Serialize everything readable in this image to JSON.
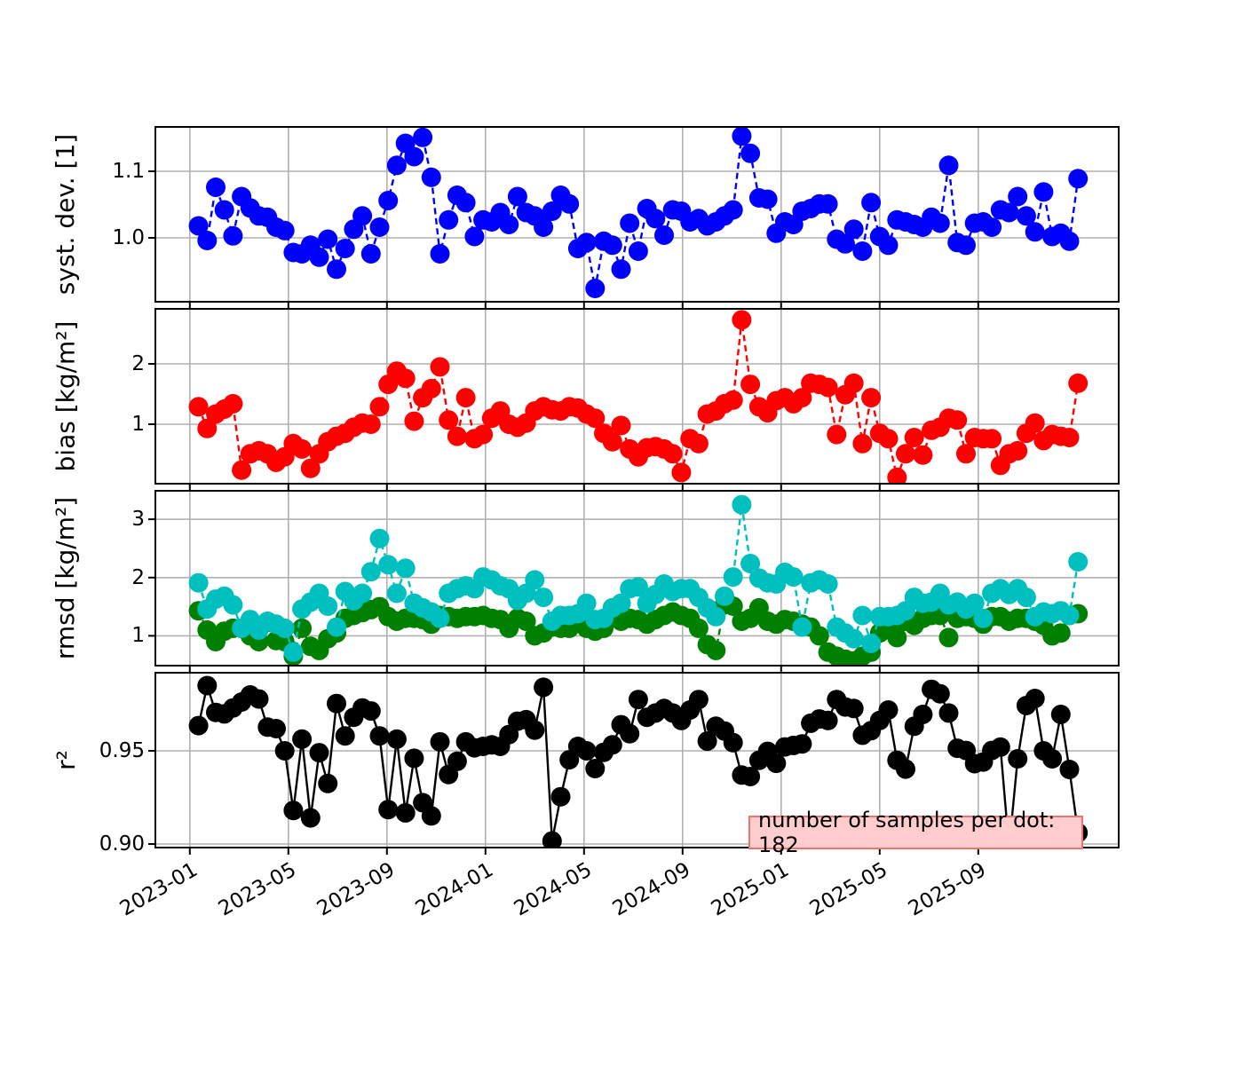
{
  "chart_data": {
    "type": "line",
    "description": "4 stacked validation time-series panels sharing one date axis",
    "x_axis": {
      "tick_labels": [
        "2023-01",
        "2023-05",
        "2023-09",
        "2024-01",
        "2024-05",
        "2024-09",
        "2025-01",
        "2025-05",
        "2025-09"
      ],
      "tick_months": [
        0,
        4,
        8,
        12,
        16,
        20,
        24,
        28,
        32
      ],
      "xlim_months": [
        -1.4,
        37.7
      ],
      "month_zero_label": "2023-01",
      "points_start_month": 0.35,
      "points_step_month": 0.35
    },
    "annotation": {
      "text": "number of samples per dot: 182"
    },
    "panels": [
      {
        "id": "systdev",
        "ylabel": "syst. dev. [1]",
        "ylim": [
          0.904,
          1.1667
        ],
        "yticks": [
          {
            "v": 1.0,
            "label": "1.0"
          },
          {
            "v": 1.1,
            "label": "1.1"
          }
        ],
        "series": [
          {
            "name": "syst-dev",
            "color": "#0000ff",
            "line_style": "dashed",
            "values": [
              1.018,
              0.996,
              1.076,
              1.042,
              1.003,
              1.062,
              1.045,
              1.033,
              1.031,
              1.016,
              1.011,
              0.978,
              0.976,
              0.989,
              0.971,
              0.998,
              0.953,
              0.984,
              1.013,
              1.033,
              0.976,
              1.016,
              1.056,
              1.109,
              1.142,
              1.122,
              1.151,
              1.091,
              0.976,
              1.027,
              1.064,
              1.053,
              1.002,
              1.027,
              1.024,
              1.038,
              1.02,
              1.062,
              1.038,
              1.033,
              1.016,
              1.04,
              1.064,
              1.051,
              0.984,
              0.993,
              0.924,
              0.995,
              0.989,
              0.953,
              1.022,
              0.98,
              1.044,
              1.029,
              1.004,
              1.042,
              1.04,
              1.024,
              1.029,
              1.018,
              1.024,
              1.033,
              1.042,
              1.153,
              1.127,
              1.06,
              1.058,
              1.007,
              1.024,
              1.02,
              1.04,
              1.044,
              1.051,
              1.051,
              0.998,
              0.991,
              1.013,
              0.98,
              1.053,
              1.002,
              0.989,
              1.027,
              1.024,
              1.02,
              1.016,
              1.031,
              1.022,
              1.109,
              0.993,
              0.989,
              1.022,
              1.024,
              1.016,
              1.042,
              1.038,
              1.062,
              1.033,
              1.009,
              1.069,
              1.002,
              1.007,
              0.995,
              1.089
            ]
          }
        ]
      },
      {
        "id": "bias",
        "ylabel": "bias [kg/m²]",
        "ylim": [
          0.015,
          2.912
        ],
        "yticks": [
          {
            "v": 1,
            "label": "1"
          },
          {
            "v": 2,
            "label": "2"
          }
        ],
        "series": [
          {
            "name": "bias",
            "color": "#ff0000",
            "line_style": "dashed",
            "values": [
              1.29,
              0.93,
              1.17,
              1.25,
              1.34,
              0.24,
              0.51,
              0.56,
              0.51,
              0.37,
              0.46,
              0.68,
              0.59,
              0.27,
              0.51,
              0.71,
              0.8,
              0.85,
              0.95,
              1.02,
              1.0,
              1.29,
              1.66,
              1.88,
              1.76,
              1.05,
              1.44,
              1.59,
              1.95,
              1.07,
              0.8,
              1.44,
              0.76,
              0.83,
              1.1,
              1.22,
              1.0,
              0.95,
              1.02,
              1.22,
              1.29,
              1.24,
              1.22,
              1.29,
              1.27,
              1.17,
              1.1,
              0.85,
              0.71,
              0.98,
              0.59,
              0.46,
              0.61,
              0.63,
              0.59,
              0.51,
              0.2,
              0.76,
              0.68,
              1.17,
              1.22,
              1.34,
              1.4,
              2.73,
              1.66,
              1.29,
              1.19,
              1.39,
              1.44,
              1.34,
              1.44,
              1.68,
              1.66,
              1.61,
              0.83,
              1.49,
              1.68,
              0.68,
              1.44,
              0.85,
              0.76,
              0.12,
              0.51,
              0.78,
              0.49,
              0.9,
              0.95,
              1.1,
              1.07,
              0.51,
              0.78,
              0.76,
              0.76,
              0.32,
              0.51,
              0.56,
              0.85,
              1.02,
              0.73,
              0.83,
              0.8,
              0.78,
              1.68
            ]
          }
        ]
      },
      {
        "id": "rmsd",
        "ylabel": "rmsd [kg/m²]",
        "ylim": [
          0.489,
          3.489
        ],
        "yticks": [
          {
            "v": 1,
            "label": "1"
          },
          {
            "v": 2,
            "label": "2"
          },
          {
            "v": 3,
            "label": "3"
          }
        ],
        "series": [
          {
            "name": "rmsd-green",
            "color": "#008000",
            "line_style": "dashed",
            "values": [
              1.43,
              1.1,
              0.9,
              1.08,
              1.13,
              1.13,
              1.0,
              0.9,
              1.23,
              0.92,
              0.9,
              0.65,
              1.13,
              0.82,
              0.75,
              0.95,
              1.05,
              1.3,
              1.35,
              1.4,
              1.45,
              1.5,
              1.33,
              1.25,
              1.3,
              1.3,
              1.28,
              1.2,
              1.35,
              1.33,
              1.3,
              1.33,
              1.33,
              1.35,
              1.3,
              1.28,
              1.13,
              1.3,
              1.25,
              1.0,
              1.05,
              1.15,
              1.13,
              1.13,
              1.25,
              1.13,
              1.08,
              1.13,
              1.48,
              1.25,
              1.3,
              1.28,
              1.2,
              1.28,
              1.35,
              1.41,
              1.35,
              1.3,
              1.13,
              0.85,
              0.75,
              1.53,
              1.51,
              1.25,
              1.3,
              1.48,
              1.25,
              1.2,
              1.28,
              1.25,
              1.2,
              1.15,
              1.0,
              0.72,
              0.65,
              0.6,
              0.57,
              0.65,
              0.72,
              1.05,
              1.15,
              0.97,
              1.25,
              1.18,
              1.3,
              1.35,
              1.35,
              0.97,
              1.3,
              1.33,
              1.3,
              1.2,
              1.33,
              1.33,
              1.25,
              1.3,
              1.3,
              1.25,
              1.18,
              1.0,
              1.05,
              1.35,
              1.38
            ]
          },
          {
            "name": "rmsd-cyan",
            "color": "#00bfbf",
            "line_style": "dashed",
            "values": [
              1.91,
              1.46,
              1.63,
              1.68,
              1.53,
              1.13,
              1.28,
              1.1,
              1.25,
              1.2,
              1.13,
              0.72,
              1.46,
              1.58,
              1.73,
              1.51,
              1.15,
              1.76,
              1.6,
              1.73,
              2.1,
              2.67,
              2.22,
              1.73,
              2.16,
              1.56,
              1.48,
              1.41,
              1.3,
              1.73,
              1.81,
              1.86,
              1.81,
              2.01,
              1.96,
              1.86,
              1.81,
              1.61,
              1.73,
              1.96,
              1.66,
              1.25,
              1.35,
              1.35,
              1.38,
              1.56,
              1.28,
              1.3,
              1.48,
              1.56,
              1.81,
              1.84,
              1.56,
              1.71,
              1.89,
              1.76,
              1.81,
              1.81,
              1.66,
              1.48,
              1.33,
              1.68,
              2.01,
              3.25,
              2.24,
              1.99,
              1.91,
              1.89,
              2.09,
              2.01,
              1.15,
              1.91,
              1.96,
              1.89,
              1.15,
              1.05,
              0.95,
              1.35,
              0.87,
              1.33,
              1.33,
              1.35,
              1.43,
              1.66,
              1.56,
              1.58,
              1.73,
              1.53,
              1.58,
              1.46,
              1.56,
              1.3,
              1.73,
              1.81,
              1.71,
              1.81,
              1.66,
              1.33,
              1.41,
              1.38,
              1.43,
              1.35,
              2.27
            ]
          }
        ]
      },
      {
        "id": "r2",
        "ylabel": "r²",
        "ylim": [
          0.8981,
          0.9919
        ],
        "yticks": [
          {
            "v": 0.9,
            "label": "0.90"
          },
          {
            "v": 0.95,
            "label": "0.95"
          }
        ],
        "series": [
          {
            "name": "r2",
            "color": "#000000",
            "line_style": "solid",
            "values": [
              0.9635,
              0.985,
              0.9706,
              0.9698,
              0.973,
              0.9762,
              0.98,
              0.9778,
              0.9627,
              0.9619,
              0.95,
              0.918,
              0.9563,
              0.914,
              0.949,
              0.9325,
              0.9754,
              0.958,
              0.968,
              0.973,
              0.9714,
              0.958,
              0.9185,
              0.9563,
              0.9167,
              0.946,
              0.9222,
              0.9151,
              0.9548,
              0.9373,
              0.9444,
              0.9548,
              0.9516,
              0.9524,
              0.9532,
              0.9524,
              0.9587,
              0.9659,
              0.9667,
              0.9611,
              0.9841,
              0.9016,
              0.9254,
              0.9452,
              0.9524,
              0.95,
              0.9405,
              0.9492,
              0.9532,
              0.964,
              0.9592,
              0.9775,
              0.968,
              0.9703,
              0.9727,
              0.9703,
              0.9663,
              0.9719,
              0.9775,
              0.9552,
              0.9632,
              0.9606,
              0.9544,
              0.937,
              0.9362,
              0.9449,
              0.9497,
              0.9433,
              0.9521,
              0.9529,
              0.9537,
              0.9648,
              0.9671,
              0.9663,
              0.9775,
              0.9735,
              0.9727,
              0.9584,
              0.9608,
              0.9663,
              0.9719,
              0.9449,
              0.9402,
              0.9632,
              0.9695,
              0.983,
              0.9806,
              0.9703,
              0.9514,
              0.9502,
              0.9431,
              0.944,
              0.9502,
              0.952,
              0.898,
              0.9457,
              0.9743,
              0.9781,
              0.95,
              0.9457,
              0.9695,
              0.94,
              0.906
            ]
          }
        ]
      }
    ],
    "style_colors": {
      "grid": "#b0b0b0",
      "frame": "#000000",
      "annotation_bg": "#ffcdcd",
      "annotation_border": "#ee7272"
    }
  }
}
